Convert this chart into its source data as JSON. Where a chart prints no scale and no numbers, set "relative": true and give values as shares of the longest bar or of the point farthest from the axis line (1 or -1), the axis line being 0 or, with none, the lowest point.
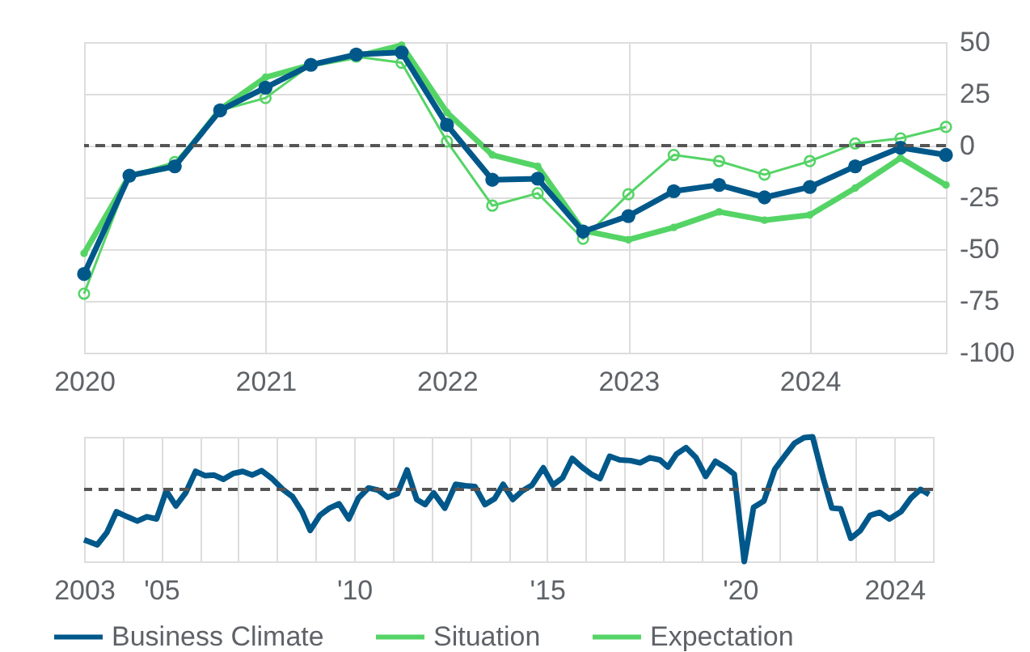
{
  "chart_data": [
    {
      "type": "line",
      "x": [
        2020,
        2020.25,
        2020.5,
        2020.75,
        2021,
        2021.25,
        2021.5,
        2021.75,
        2022,
        2022.25,
        2022.5,
        2022.75,
        2023,
        2023.25,
        2023.5,
        2023.75,
        2024,
        2024.25,
        2024.5,
        2024.75
      ],
      "series": [
        {
          "name": "Business Climate",
          "color": "#00588a",
          "values": [
            -62,
            -14.5,
            -10,
            17,
            28,
            39,
            44,
            45,
            10,
            -16.5,
            -16,
            -41.5,
            -34,
            -22,
            -19,
            -25,
            -20,
            -10,
            -1,
            -4.5
          ]
        },
        {
          "name": "Situation",
          "color": "#55d466",
          "values": [
            -52,
            -14.5,
            -10,
            17.5,
            33,
            39,
            43,
            48.5,
            16,
            -4.5,
            -10,
            -41,
            -45.5,
            -39.5,
            -32,
            -36,
            -33.5,
            -20.5,
            -6,
            -19
          ]
        },
        {
          "name": "Expectation",
          "color": "#55d466",
          "values": [
            -71.5,
            -14.5,
            -8,
            17,
            23,
            39,
            43,
            40,
            2,
            -29,
            -23,
            -45,
            -23.5,
            -4.5,
            -7.5,
            -14,
            -7.5,
            1,
            3.5,
            9
          ]
        }
      ],
      "xlim": [
        2020,
        2024.75
      ],
      "xticks": [
        2020,
        2021,
        2022,
        2023,
        2024
      ],
      "ylim": [
        -100,
        50
      ],
      "yticks": [
        -100,
        -75,
        -50,
        -25,
        0,
        25,
        50
      ],
      "ref_lines": [
        {
          "axis": "y",
          "value": 0,
          "color": "#555555",
          "line_style": "dashed"
        }
      ],
      "grid": true,
      "legend": "bottom",
      "marker": "circle"
    },
    {
      "type": "line",
      "relative": true,
      "x": [
        2003.0,
        2003.34,
        2003.59,
        2003.84,
        2004.12,
        2004.38,
        2004.63,
        2004.88,
        2005.13,
        2005.38,
        2005.63,
        2005.89,
        2006.14,
        2006.36,
        2006.61,
        2006.86,
        2007.11,
        2007.36,
        2007.6,
        2007.87,
        2008.15,
        2008.4,
        2008.65,
        2008.86,
        2009.11,
        2009.36,
        2009.61,
        2009.86,
        2010.11,
        2010.37,
        2010.62,
        2010.87,
        2011.12,
        2011.37,
        2011.62,
        2011.84,
        2012.06,
        2012.35,
        2012.63,
        2012.88,
        2013.13,
        2013.39,
        2013.64,
        2013.86,
        2014.11,
        2014.36,
        2014.61,
        2014.9,
        2015.15,
        2015.4,
        2015.65,
        2015.9,
        2016.15,
        2016.37,
        2016.62,
        2016.88,
        2017.16,
        2017.41,
        2017.66,
        2017.92,
        2018.13,
        2018.35,
        2018.6,
        2018.86,
        2019.11,
        2019.36,
        2019.61,
        2019.85,
        2020.11,
        2020.35,
        2020.62,
        2020.9,
        2021.15,
        2021.41,
        2021.66,
        2021.88,
        2022.16,
        2022.38,
        2022.61,
        2022.87,
        2023.12,
        2023.37,
        2023.62,
        2023.87,
        2024.17,
        2024.43,
        2024.68,
        2024.9
      ],
      "series": [
        {
          "name": "Business Climate",
          "color": "#00588a",
          "values": [
            -0.7,
            -0.77,
            -0.6,
            -0.31,
            -0.38,
            -0.44,
            -0.38,
            -0.41,
            -0.02,
            -0.23,
            -0.05,
            0.25,
            0.19,
            0.2,
            0.14,
            0.22,
            0.25,
            0.2,
            0.26,
            0.15,
            0.0,
            -0.1,
            -0.31,
            -0.57,
            -0.36,
            -0.26,
            -0.2,
            -0.41,
            -0.12,
            0.02,
            -0.01,
            -0.11,
            -0.06,
            0.27,
            -0.14,
            -0.21,
            -0.05,
            -0.26,
            0.07,
            0.05,
            0.04,
            -0.21,
            -0.13,
            0.07,
            -0.14,
            -0.02,
            0.06,
            0.3,
            0.06,
            0.16,
            0.43,
            0.31,
            0.21,
            0.15,
            0.46,
            0.41,
            0.4,
            0.37,
            0.44,
            0.41,
            0.31,
            0.49,
            0.58,
            0.44,
            0.18,
            0.39,
            0.31,
            0.21,
            -1.0,
            -0.25,
            -0.16,
            0.28,
            0.46,
            0.64,
            0.72,
            0.73,
            0.15,
            -0.26,
            -0.27,
            -0.68,
            -0.57,
            -0.36,
            -0.32,
            -0.41,
            -0.31,
            -0.12,
            0.0,
            -0.07
          ]
        }
      ],
      "xlim": [
        2003,
        2025
      ],
      "xticks": [
        2003,
        {
          "value": 2004,
          "label": null
        },
        {
          "value": 2005,
          "label": "'05"
        },
        {
          "value": 2006,
          "label": null
        },
        {
          "value": 2007,
          "label": null
        },
        {
          "value": 2008,
          "label": null
        },
        {
          "value": 2009,
          "label": null
        },
        {
          "value": 2010,
          "label": "'10"
        },
        {
          "value": 2011,
          "label": null
        },
        {
          "value": 2012,
          "label": null
        },
        {
          "value": 2013,
          "label": null
        },
        {
          "value": 2014,
          "label": null
        },
        {
          "value": 2015,
          "label": "'15"
        },
        {
          "value": 2016,
          "label": null
        },
        {
          "value": 2017,
          "label": null
        },
        {
          "value": 2018,
          "label": null
        },
        {
          "value": 2019,
          "label": null
        },
        {
          "value": 2020,
          "label": "'20"
        },
        {
          "value": 2021,
          "label": null
        },
        {
          "value": 2022,
          "label": null
        },
        {
          "value": 2023,
          "label": null
        },
        2024,
        {
          "value": 2025,
          "label": null
        }
      ],
      "ref_lines": [
        {
          "axis": "y",
          "value": 0,
          "color": "#555555",
          "line_style": "dashed"
        }
      ],
      "grid": "x",
      "tick_labels": "x"
    }
  ]
}
